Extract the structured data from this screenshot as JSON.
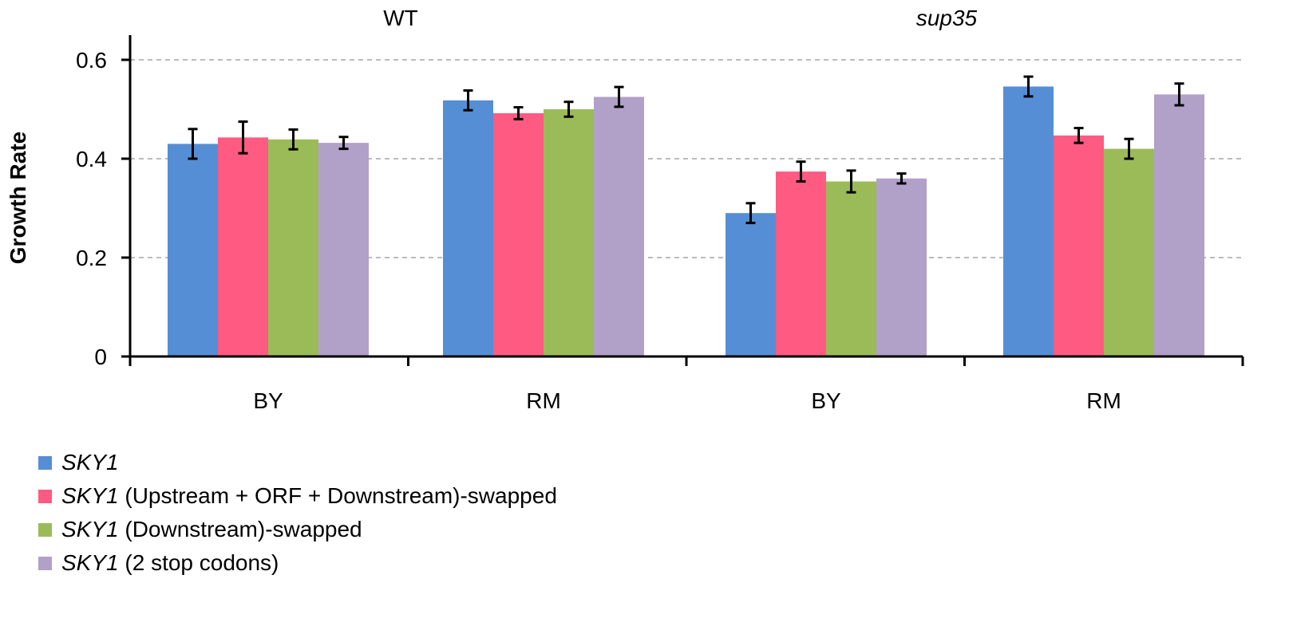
{
  "chart_data": {
    "type": "bar",
    "ylabel": "Growth Rate",
    "ylim": [
      0,
      0.6
    ],
    "yticks": [
      "0",
      "0.2",
      "0.4",
      "0.6"
    ],
    "grid": true,
    "legend_position": "bottom-left",
    "panels": [
      {
        "title": "WT",
        "title_italic": false,
        "categories": [
          "BY",
          "RM"
        ],
        "series_values": [
          [
            0.43,
            0.518
          ],
          [
            0.443,
            0.492
          ],
          [
            0.439,
            0.5
          ],
          [
            0.432,
            0.525
          ]
        ],
        "series_errors": [
          [
            0.03,
            0.02
          ],
          [
            0.032,
            0.012
          ],
          [
            0.02,
            0.015
          ],
          [
            0.012,
            0.02
          ]
        ]
      },
      {
        "title": "sup35",
        "title_italic": true,
        "categories": [
          "BY",
          "RM"
        ],
        "series_values": [
          [
            0.29,
            0.546
          ],
          [
            0.374,
            0.447
          ],
          [
            0.354,
            0.42
          ],
          [
            0.36,
            0.53
          ]
        ],
        "series_errors": [
          [
            0.02,
            0.02
          ],
          [
            0.02,
            0.015
          ],
          [
            0.022,
            0.02
          ],
          [
            0.01,
            0.022
          ]
        ]
      }
    ],
    "series": [
      {
        "name": "SKY1",
        "color": "#558ed5"
      },
      {
        "name": "SKY1 (Upstream + ORF + Downstream)-swapped",
        "color": "#ff5a82"
      },
      {
        "name": "SKY1 (Downstream)-swapped",
        "color": "#9bbb59"
      },
      {
        "name": "SKY1 (2 stop codons)",
        "color": "#b1a0c7"
      }
    ]
  },
  "legend": [
    {
      "gene": "SKY1",
      "suffix": ""
    },
    {
      "gene": "SKY1",
      "suffix": " (Upstream + ORF + Downstream)-swapped"
    },
    {
      "gene": "SKY1",
      "suffix": " (Downstream)-swapped"
    },
    {
      "gene": "SKY1",
      "suffix": " (2 stop codons)"
    }
  ]
}
